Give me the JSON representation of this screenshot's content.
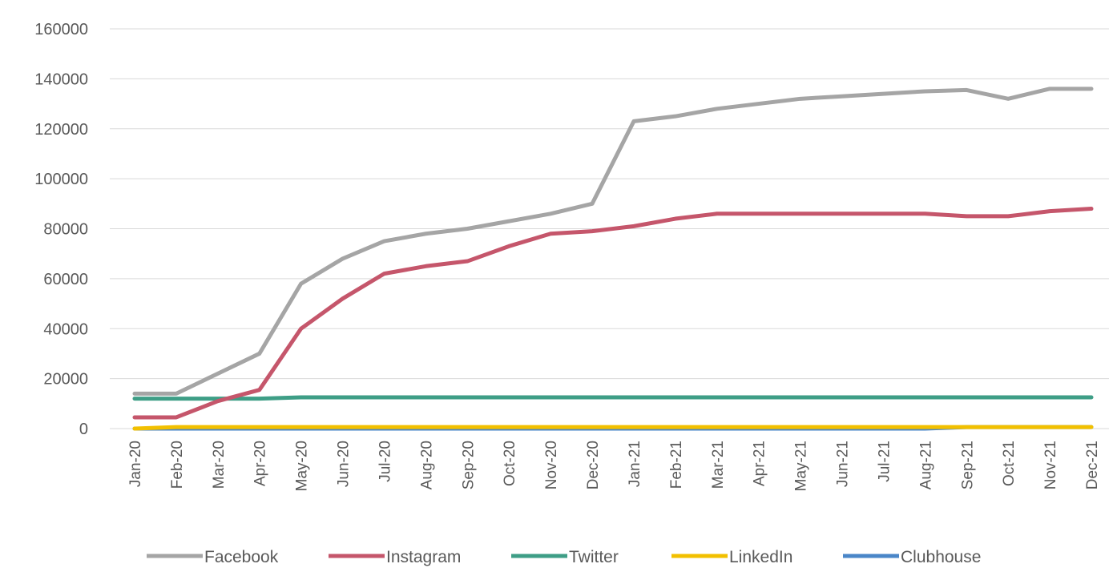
{
  "chart_data": {
    "type": "line",
    "title": "",
    "xlabel": "",
    "ylabel": "",
    "ylim": [
      0,
      160000
    ],
    "yticks": [
      0,
      20000,
      40000,
      60000,
      80000,
      100000,
      120000,
      140000,
      160000
    ],
    "ytick_labels": [
      "0",
      "20000",
      "40000",
      "60000",
      "80000",
      "100000",
      "120000",
      "140000",
      "160000"
    ],
    "grid": "horizontal",
    "legend_position": "bottom",
    "categories": [
      "Jan-20",
      "Feb-20",
      "Mar-20",
      "Apr-20",
      "May-20",
      "Jun-20",
      "Jul-20",
      "Aug-20",
      "Sep-20",
      "Oct-20",
      "Nov-20",
      "Dec-20",
      "Jan-21",
      "Feb-21",
      "Mar-21",
      "Apr-21",
      "May-21",
      "Jun-21",
      "Jul-21",
      "Aug-21",
      "Sep-21",
      "Oct-21",
      "Nov-21",
      "Dec-21"
    ],
    "series": [
      {
        "name": "Facebook",
        "color": "#A5A5A5",
        "values": [
          14000,
          14000,
          22000,
          30000,
          58000,
          68000,
          75000,
          78000,
          80000,
          83000,
          86000,
          90000,
          123000,
          125000,
          128000,
          130000,
          132000,
          133000,
          134000,
          135000,
          135500,
          132000,
          136000,
          136000
        ]
      },
      {
        "name": "Instagram",
        "color": "#C5566B",
        "values": [
          4500,
          4500,
          11000,
          15500,
          40000,
          52000,
          62000,
          65000,
          67000,
          73000,
          78000,
          79000,
          81000,
          84000,
          86000,
          86000,
          86000,
          86000,
          86000,
          86000,
          85000,
          85000,
          87000,
          88000
        ]
      },
      {
        "name": "Twitter",
        "color": "#3E9E86",
        "values": [
          12000,
          12000,
          12000,
          12000,
          12500,
          12500,
          12500,
          12500,
          12500,
          12500,
          12500,
          12500,
          12500,
          12500,
          12500,
          12500,
          12500,
          12500,
          12500,
          12500,
          12500,
          12500,
          12500,
          12500
        ]
      },
      {
        "name": "LinkedIn",
        "color": "#F2C000",
        "values": [
          0,
          600,
          600,
          600,
          600,
          600,
          600,
          600,
          600,
          600,
          600,
          600,
          600,
          600,
          600,
          600,
          600,
          600,
          600,
          600,
          600,
          600,
          600,
          600
        ]
      },
      {
        "name": "Clubhouse",
        "color": "#4A86C8",
        "values": [
          0,
          0,
          0,
          0,
          0,
          0,
          0,
          0,
          0,
          0,
          0,
          0,
          0,
          0,
          0,
          0,
          0,
          0,
          0,
          0,
          600,
          600,
          600,
          600
        ]
      }
    ]
  }
}
